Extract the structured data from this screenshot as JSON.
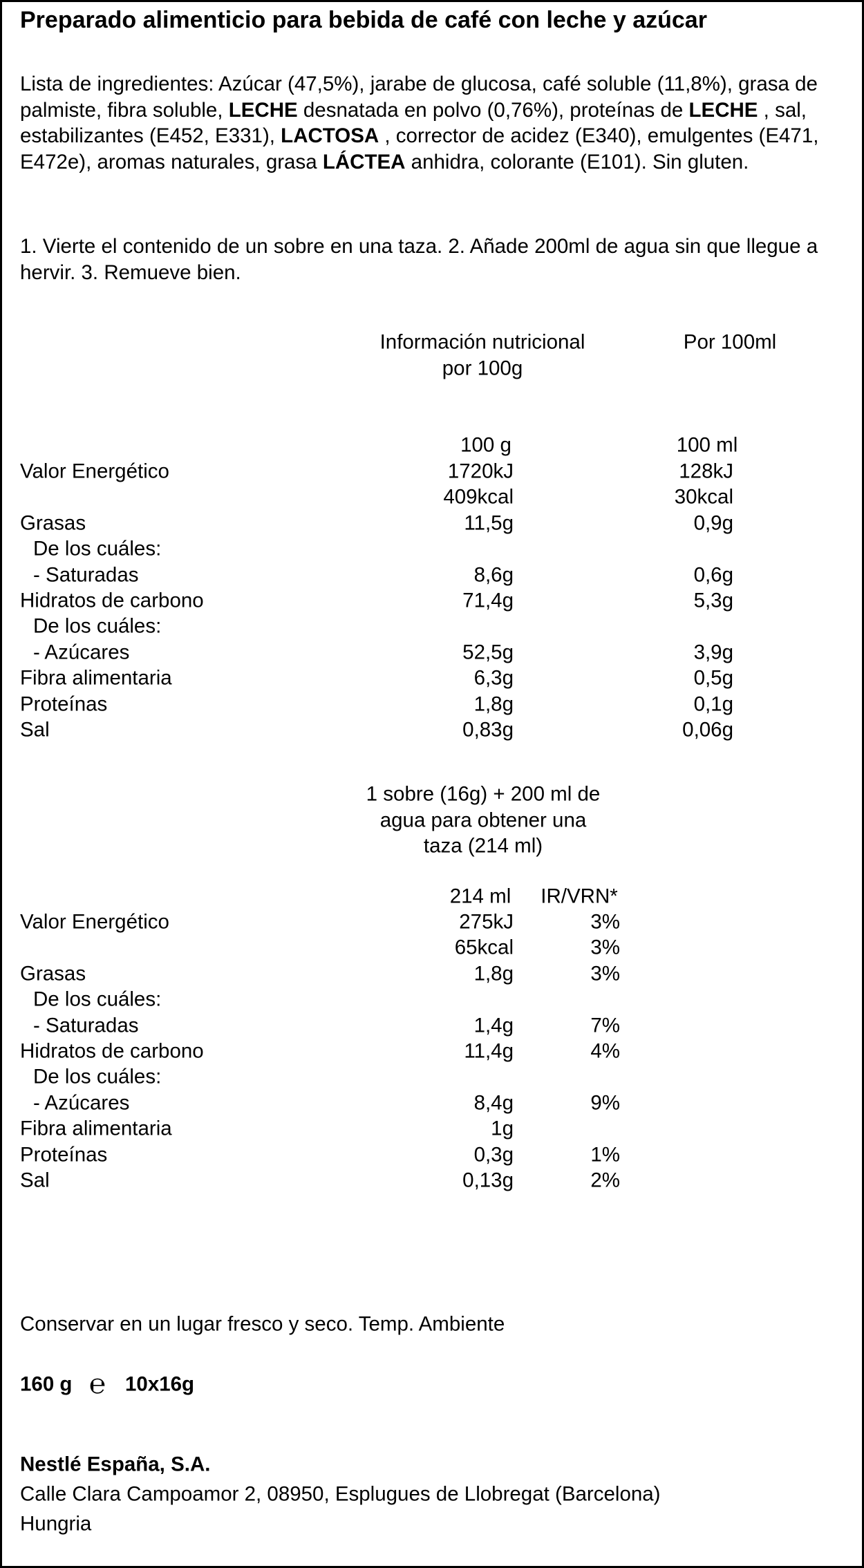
{
  "title": "Preparado alimenticio para bebida de café con leche y azúcar",
  "ingredients": [
    "Lista de ingredientes: Azúcar (47,5%), jarabe de glucosa, café soluble (11,8%), grasa de palmiste, fibra soluble, ",
    "LECHE",
    " desnatada en polvo (0,76%), proteínas de ",
    "LECHE",
    " , sal, estabilizantes (E452, E331), ",
    "LACTOSA",
    " , corrector de acidez (E340), emulgentes (E471, E472e), aromas naturales, grasa ",
    "LÁCTEA",
    " anhidra, colorante (E101). Sin gluten."
  ],
  "instructions": "1. Vierte el contenido de un sobre en una taza. 2. Añade 200ml de agua sin que llegue a hervir. 3. Remueve bien.",
  "table1": {
    "heading_left": [
      "Información nutricional",
      "por 100g"
    ],
    "heading_right": "Por 100ml",
    "column_heads": {
      "per100g": "100 g",
      "per100ml": "100 ml"
    },
    "rows": [
      {
        "label": "Valor Energético",
        "per100g": "1720kJ",
        "per100ml": "128kJ"
      },
      {
        "per100g": "409kcal",
        "per100ml": "30kcal"
      },
      {
        "label": "Grasas",
        "per100g": "11,5g",
        "per100ml": "0,9g"
      },
      {
        "label": "De los cuáles:"
      },
      {
        "label": "- Saturadas",
        "per100g": "8,6g",
        "per100ml": "0,6g"
      },
      {
        "label": "Hidratos de carbono",
        "per100g": "71,4g",
        "per100ml": "5,3g"
      },
      {
        "label": "De los cuáles:"
      },
      {
        "label": "- Azúcares",
        "per100g": "52,5g",
        "per100ml": "3,9g"
      },
      {
        "label": "Fibra alimentaria",
        "per100g": "6,3g",
        "per100ml": "0,5g"
      },
      {
        "label": "Proteínas",
        "per100g": "1,8g",
        "per100ml": "0,1g"
      },
      {
        "label": "Sal",
        "per100g": "0,83g",
        "per100ml": "0,06g"
      }
    ]
  },
  "table2": {
    "heading": [
      "1 sobre (16g) + 200 ml de",
      "agua para obtener una",
      "taza (214 ml)"
    ],
    "column_heads": {
      "per_serving": "214 ml",
      "ir_vrn": "IR/VRN*"
    },
    "rows": [
      {
        "label": "Valor Energético",
        "per_serving": "275kJ",
        "ir_vrn": "3%"
      },
      {
        "per_serving": "65kcal",
        "ir_vrn": "3%"
      },
      {
        "label": "Grasas",
        "per_serving": "1,8g",
        "ir_vrn": "3%"
      },
      {
        "label": "De los cuáles:"
      },
      {
        "label": "- Saturadas",
        "per_serving": "1,4g",
        "ir_vrn": "7%"
      },
      {
        "label": "Hidratos de carbono",
        "per_serving": "11,4g",
        "ir_vrn": "4%"
      },
      {
        "label": "De los cuáles:"
      },
      {
        "label": "- Azúcares",
        "per_serving": "8,4g",
        "ir_vrn": "9%"
      },
      {
        "label": "Fibra alimentaria",
        "per_serving": "1g"
      },
      {
        "label": "Proteínas",
        "per_serving": "0,3g",
        "ir_vrn": "1%"
      },
      {
        "label": "Sal",
        "per_serving": "0,13g",
        "ir_vrn": "2%"
      }
    ]
  },
  "storage": "Conservar en un lugar fresco y seco. Temp. Ambiente",
  "net_quantity": {
    "weight": "160 g",
    "estimated_sign": "℮",
    "units": "10x16g"
  },
  "company": {
    "name": "Nestlé España, S.A.",
    "address": "Calle Clara Campoamor 2, 08950, Esplugues de Llobregat (Barcelona)",
    "country": "Hungria"
  }
}
